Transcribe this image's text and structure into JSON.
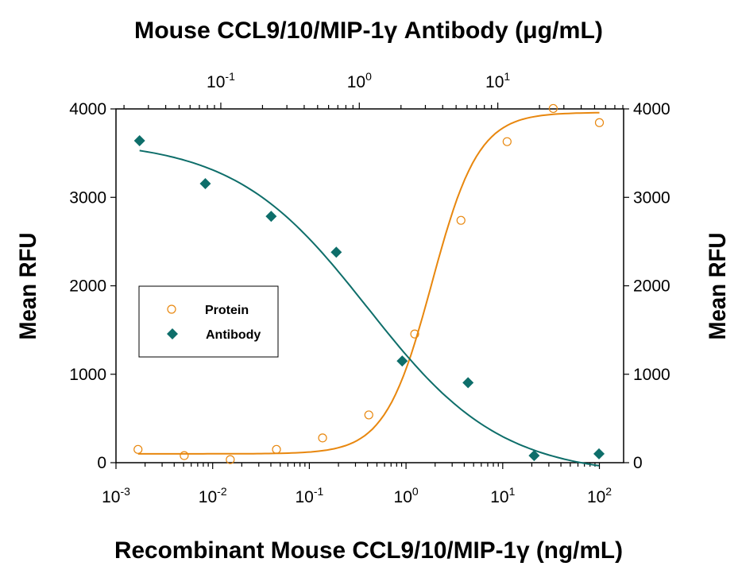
{
  "chart_data": {
    "type": "scatter",
    "title": "",
    "top_xlabel": "Mouse CCL9/10/MIP-1γ Antibody (μg/mL)",
    "xlabel": "Recombinant Mouse CCL9/10/MIP-1γ (ng/mL)",
    "ylabel": "Mean RFU",
    "ylabel_right": "Mean RFU",
    "x_scale": "log",
    "xlim": [
      0.001,
      178
    ],
    "top_x_scale": "log",
    "top_xlim": [
      0.0175,
      81
    ],
    "ylim": [
      0,
      4000
    ],
    "grid": false,
    "legend_position": "center-left",
    "x_ticks": [
      {
        "base": "10",
        "exp": "-3",
        "value": 0.001
      },
      {
        "base": "10",
        "exp": "-2",
        "value": 0.01
      },
      {
        "base": "10",
        "exp": "-1",
        "value": 0.1
      },
      {
        "base": "10",
        "exp": "0",
        "value": 1
      },
      {
        "base": "10",
        "exp": "1",
        "value": 10
      },
      {
        "base": "10",
        "exp": "2",
        "value": 100
      }
    ],
    "top_x_ticks": [
      {
        "base": "10",
        "exp": "-1",
        "value": 0.1
      },
      {
        "base": "10",
        "exp": "0",
        "value": 1
      },
      {
        "base": "10",
        "exp": "1",
        "value": 10
      }
    ],
    "y_ticks": [
      "0",
      "1000",
      "2000",
      "3000",
      "4000"
    ],
    "series": [
      {
        "name": "Protein",
        "axis": "bottom",
        "marker": "open-circle",
        "color": "#E8870E",
        "x": [
          0.00169,
          0.00508,
          0.0152,
          0.0457,
          0.137,
          0.412,
          1.23,
          3.7,
          11.1,
          33.3,
          100
        ],
        "y": [
          150,
          80,
          35,
          150,
          280,
          540,
          1455,
          2740,
          3630,
          4005,
          3845
        ]
      },
      {
        "name": "Antibody",
        "axis": "top",
        "marker": "filled-diamond",
        "color": "#0E6E6A",
        "x": [
          0.0259,
          0.0773,
          0.231,
          0.682,
          2.04,
          6.1,
          18.3,
          53.8
        ],
        "y": [
          3640,
          3155,
          2785,
          2380,
          1150,
          905,
          80,
          100
        ]
      }
    ]
  }
}
